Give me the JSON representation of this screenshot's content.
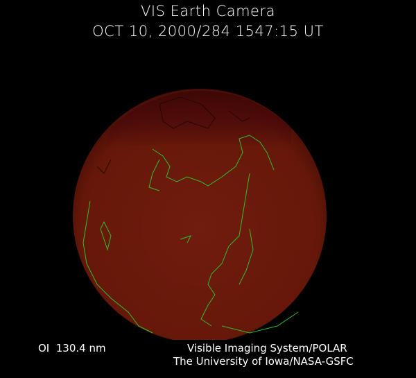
{
  "header": {
    "title": "VIS Earth Camera",
    "timestamp": "OCT 10, 2000/284 1547:15 UT"
  },
  "footer": {
    "wavelength": "OI  130.4 nm",
    "credit_line1": "Visible Imaging System/POLAR",
    "credit_line2": "The University of Iowa/NASA-GSFC"
  },
  "colors": {
    "background": "#000000",
    "globe": "#6b1a0c",
    "globe_dark_cap": "#420806",
    "coastlines": "#2fbf2f"
  }
}
